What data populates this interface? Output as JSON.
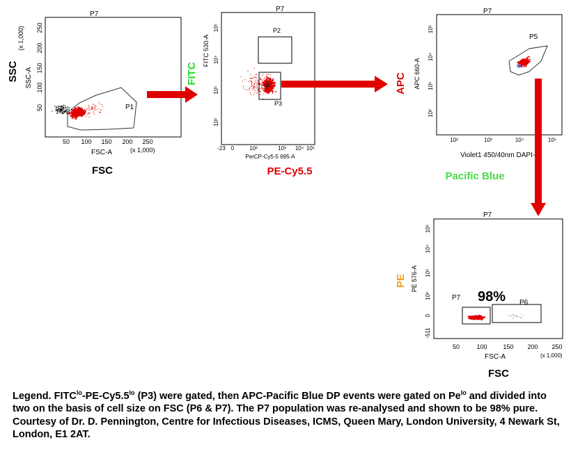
{
  "colors": {
    "arrow": "#e00000",
    "events": "#e00000",
    "fitc": "#22dd22",
    "pacific_blue": "#44dd44",
    "pe": "#f0a020",
    "red_label": "#e00000",
    "black_label": "#000000"
  },
  "plots": {
    "p1": {
      "title": "P7",
      "y_axis_label": "SSC-A",
      "y_multiplier": "(x 1,000)",
      "x_axis_label": "FSC-A",
      "x_multiplier": "(x 1,000)",
      "y_ticks": [
        "250",
        "200",
        "150",
        "100",
        "50"
      ],
      "x_ticks": [
        "50",
        "100",
        "150",
        "200",
        "250"
      ],
      "gate_label": "P1",
      "outside_y_label": "SSC",
      "outside_x_label": "FSC"
    },
    "p2": {
      "title": "P7",
      "y_axis_label": "FITC 530-A",
      "x_axis_label": "PerCP-Cy5-5 695-A",
      "y_ticks": [
        "10⁵",
        "10⁴",
        "10³",
        "10²"
      ],
      "x_ticks": [
        "-23",
        "0",
        "10²",
        "10³",
        "10⁴",
        "10⁵"
      ],
      "gate_labels": [
        "P2",
        "P3"
      ],
      "outside_y_label": "FITC",
      "outside_x_label": "PE-Cy5.5"
    },
    "p3": {
      "title": "P7",
      "y_axis_label": "APC 660-A",
      "x_axis_label": "Violet1 450/40nm DAPI-A",
      "y_ticks": [
        "10⁵",
        "10⁴",
        "10³",
        "10²"
      ],
      "x_ticks": [
        "10²",
        "10³",
        "10⁴",
        "10⁵"
      ],
      "gate_label": "P5",
      "outside_y_label": "APC",
      "outside_x_label": "Pacific Blue"
    },
    "p4": {
      "title": "P7",
      "y_axis_label": "PE 576-A",
      "x_axis_label": "FSC-A",
      "x_multiplier": "(x 1,000)",
      "y_ticks": [
        "10⁵",
        "10⁴",
        "10³",
        "10²",
        "0",
        "-511"
      ],
      "x_ticks": [
        "50",
        "100",
        "150",
        "200",
        "250"
      ],
      "gate_labels": [
        "P7",
        "P6"
      ],
      "percent_label": "98%",
      "outside_y_label": "PE",
      "outside_x_label": "FSC"
    }
  },
  "legend": {
    "t1": "Legend. FITC",
    "s1": "lo",
    "t2": "-PE-Cy5.5",
    "s2": "lo",
    "t3": " (P3) were gated, then APC-Pacific Blue DP events were gated on Pe",
    "s3": "lo",
    "t4": " and divided into two on the basis of cell size on FSC (P6 & P7).  The P7 population was re-analysed and shown to be 98% pure.",
    "courtesy": "Courtesy of Dr. D. Pennington, Centre for Infectious Diseases, ICMS, Queen Mary, London University, 4 Newark St, London, E1 2AT."
  }
}
